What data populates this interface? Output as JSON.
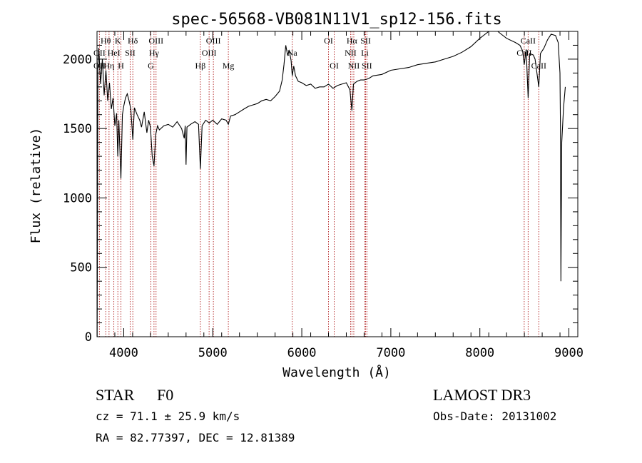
{
  "chart_data": {
    "type": "line",
    "title": "spec-56568-VB081N11V1_sp12-156.fits",
    "xlabel": "Wavelength (Å)",
    "ylabel": "Flux (relative)",
    "xlim": [
      3700,
      9100
    ],
    "ylim": [
      0,
      2200
    ],
    "x_ticks": [
      4000,
      5000,
      6000,
      7000,
      8000,
      9000
    ],
    "x_tick_labels": [
      "4000",
      "5000",
      "6000",
      "7000",
      "8000",
      "9000"
    ],
    "y_ticks": [
      0,
      500,
      1000,
      1500,
      2000
    ],
    "y_tick_labels": [
      "0",
      "500",
      "1000",
      "1500",
      "2000"
    ],
    "x_minor_step": 200,
    "y_minor_step": 100,
    "series": [
      {
        "name": "flux",
        "points": [
          [
            3702,
            0
          ],
          [
            3705,
            740
          ],
          [
            3710,
            1950
          ],
          [
            3720,
            2080
          ],
          [
            3740,
            1820
          ],
          [
            3760,
            2000
          ],
          [
            3780,
            1740
          ],
          [
            3800,
            1920
          ],
          [
            3820,
            1700
          ],
          [
            3840,
            1830
          ],
          [
            3860,
            1640
          ],
          [
            3880,
            1720
          ],
          [
            3900,
            1520
          ],
          [
            3920,
            1610
          ],
          [
            3933,
            1300
          ],
          [
            3945,
            1560
          ],
          [
            3968,
            1140
          ],
          [
            3985,
            1600
          ],
          [
            4000,
            1660
          ],
          [
            4020,
            1720
          ],
          [
            4040,
            1750
          ],
          [
            4060,
            1700
          ],
          [
            4080,
            1640
          ],
          [
            4102,
            1420
          ],
          [
            4120,
            1650
          ],
          [
            4150,
            1600
          ],
          [
            4180,
            1560
          ],
          [
            4200,
            1510
          ],
          [
            4230,
            1620
          ],
          [
            4260,
            1470
          ],
          [
            4280,
            1560
          ],
          [
            4300,
            1510
          ],
          [
            4320,
            1300
          ],
          [
            4340,
            1230
          ],
          [
            4360,
            1460
          ],
          [
            4380,
            1520
          ],
          [
            4400,
            1490
          ],
          [
            4450,
            1520
          ],
          [
            4500,
            1530
          ],
          [
            4550,
            1510
          ],
          [
            4600,
            1550
          ],
          [
            4650,
            1500
          ],
          [
            4680,
            1430
          ],
          [
            4690,
            1520
          ],
          [
            4700,
            1240
          ],
          [
            4710,
            1510
          ],
          [
            4750,
            1530
          ],
          [
            4800,
            1550
          ],
          [
            4840,
            1530
          ],
          [
            4861,
            1210
          ],
          [
            4880,
            1520
          ],
          [
            4920,
            1560
          ],
          [
            4960,
            1540
          ],
          [
            5000,
            1560
          ],
          [
            5050,
            1530
          ],
          [
            5100,
            1570
          ],
          [
            5150,
            1560
          ],
          [
            5175,
            1530
          ],
          [
            5200,
            1590
          ],
          [
            5250,
            1600
          ],
          [
            5300,
            1620
          ],
          [
            5350,
            1640
          ],
          [
            5400,
            1660
          ],
          [
            5450,
            1670
          ],
          [
            5500,
            1680
          ],
          [
            5550,
            1700
          ],
          [
            5600,
            1710
          ],
          [
            5650,
            1700
          ],
          [
            5700,
            1730
          ],
          [
            5750,
            1770
          ],
          [
            5780,
            1850
          ],
          [
            5800,
            1960
          ],
          [
            5820,
            2100
          ],
          [
            5840,
            2030
          ],
          [
            5860,
            2060
          ],
          [
            5880,
            1990
          ],
          [
            5893,
            1880
          ],
          [
            5910,
            1950
          ],
          [
            5930,
            1880
          ],
          [
            5960,
            1840
          ],
          [
            6000,
            1830
          ],
          [
            6050,
            1810
          ],
          [
            6100,
            1820
          ],
          [
            6150,
            1790
          ],
          [
            6200,
            1800
          ],
          [
            6250,
            1800
          ],
          [
            6300,
            1820
          ],
          [
            6350,
            1790
          ],
          [
            6400,
            1810
          ],
          [
            6450,
            1820
          ],
          [
            6500,
            1830
          ],
          [
            6540,
            1780
          ],
          [
            6563,
            1630
          ],
          [
            6580,
            1820
          ],
          [
            6620,
            1840
          ],
          [
            6660,
            1850
          ],
          [
            6700,
            1850
          ],
          [
            6750,
            1860
          ],
          [
            6800,
            1880
          ],
          [
            6900,
            1890
          ],
          [
            7000,
            1920
          ],
          [
            7100,
            1930
          ],
          [
            7200,
            1940
          ],
          [
            7300,
            1960
          ],
          [
            7400,
            1970
          ],
          [
            7500,
            1980
          ],
          [
            7600,
            2000
          ],
          [
            7700,
            2020
          ],
          [
            7800,
            2050
          ],
          [
            7900,
            2090
          ],
          [
            8000,
            2150
          ],
          [
            8100,
            2200
          ],
          [
            8150,
            2220
          ],
          [
            8200,
            2200
          ],
          [
            8300,
            2150
          ],
          [
            8400,
            2120
          ],
          [
            8450,
            2100
          ],
          [
            8480,
            2060
          ],
          [
            8498,
            1960
          ],
          [
            8520,
            2070
          ],
          [
            8542,
            1720
          ],
          [
            8560,
            2040
          ],
          [
            8600,
            2030
          ],
          [
            8620,
            2000
          ],
          [
            8662,
            1800
          ],
          [
            8680,
            2040
          ],
          [
            8720,
            2080
          ],
          [
            8760,
            2140
          ],
          [
            8800,
            2180
          ],
          [
            8850,
            2170
          ],
          [
            8880,
            2120
          ],
          [
            8900,
            1900
          ],
          [
            8905,
            1500
          ],
          [
            8910,
            400
          ],
          [
            8920,
            1400
          ],
          [
            8940,
            1650
          ],
          [
            8960,
            1800
          ]
        ]
      }
    ],
    "spectral_lines": [
      {
        "label": "Hθ",
        "wavelength": 3798,
        "row": 0
      },
      {
        "label": "OII",
        "wavelength": 3727,
        "row": 1
      },
      {
        "label": "OII",
        "wavelength": 3727,
        "row": 2
      },
      {
        "label": "K",
        "wavelength": 3934,
        "row": 0
      },
      {
        "label": "HeI",
        "wavelength": 3889,
        "row": 1
      },
      {
        "label": "Hη",
        "wavelength": 3835,
        "row": 2
      },
      {
        "label": "Hδ",
        "wavelength": 4102,
        "row": 0
      },
      {
        "label": "SII",
        "wavelength": 4072,
        "row": 1
      },
      {
        "label": "H",
        "wavelength": 3969,
        "row": 2
      },
      {
        "label": "OIII",
        "wavelength": 4363,
        "row": 0
      },
      {
        "label": "Hγ",
        "wavelength": 4340,
        "row": 1
      },
      {
        "label": "G",
        "wavelength": 4305,
        "row": 2
      },
      {
        "label": "OIII",
        "wavelength": 5007,
        "row": 0
      },
      {
        "label": "OIII",
        "wavelength": 4959,
        "row": 1
      },
      {
        "label": "Hβ",
        "wavelength": 4861,
        "row": 2
      },
      {
        "label": "Mg",
        "wavelength": 5175,
        "row": 2
      },
      {
        "label": "Na",
        "wavelength": 5893,
        "row": 1
      },
      {
        "label": "OI",
        "wavelength": 6300,
        "row": 0
      },
      {
        "label": "OI",
        "wavelength": 6364,
        "row": 2
      },
      {
        "label": "Hα",
        "wavelength": 6563,
        "row": 0
      },
      {
        "label": "SII",
        "wavelength": 6717,
        "row": 0
      },
      {
        "label": "NII",
        "wavelength": 6548,
        "row": 1
      },
      {
        "label": "Li",
        "wavelength": 6708,
        "row": 1
      },
      {
        "label": "NII",
        "wavelength": 6584,
        "row": 2
      },
      {
        "label": "SII",
        "wavelength": 6731,
        "row": 2
      },
      {
        "label": "CaII",
        "wavelength": 8542,
        "row": 0
      },
      {
        "label": "CaII",
        "wavelength": 8498,
        "row": 1
      },
      {
        "label": "CaII",
        "wavelength": 8662,
        "row": 2
      }
    ]
  },
  "info": {
    "class_label": "STAR",
    "subclass_label": "F0",
    "cz_text": "cz = 71.1 ± 25.9 km/s",
    "coords_text": "RA =  82.77397, DEC =  12.81389",
    "survey": "LAMOST DR3",
    "obs_date": "Obs-Date: 20131002"
  }
}
